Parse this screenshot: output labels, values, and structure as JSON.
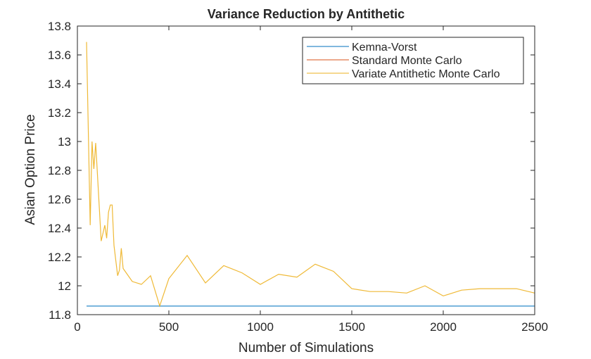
{
  "chart_data": {
    "type": "line",
    "title": "Variance Reduction by Antithetic",
    "xlabel": "Number of Simulations",
    "ylabel": "Asian Option Price",
    "xlim": [
      0,
      2500
    ],
    "ylim": [
      11.8,
      13.8
    ],
    "xticks": [
      0,
      500,
      1000,
      1500,
      2000,
      2500
    ],
    "yticks": [
      11.8,
      12,
      12.2,
      12.4,
      12.6,
      12.8,
      13,
      13.2,
      13.4,
      13.6,
      13.8
    ],
    "grid": false,
    "legend_placement": "top-right",
    "series": [
      {
        "name": "Kemna-Vorst",
        "color": "#0072BD",
        "x": [
          50,
          2500
        ],
        "y": [
          11.86,
          11.86
        ]
      },
      {
        "name": "Standard Monte Carlo",
        "color": "#D95319",
        "x": [],
        "y": []
      },
      {
        "name": "Variate Antithetic Monte Carlo",
        "color": "#EDB120",
        "x": [
          50,
          70,
          80,
          90,
          100,
          130,
          150,
          160,
          170,
          180,
          190,
          200,
          220,
          230,
          240,
          250,
          300,
          350,
          400,
          450,
          500,
          600,
          700,
          800,
          900,
          1000,
          1100,
          1200,
          1300,
          1400,
          1500,
          1600,
          1700,
          1800,
          1900,
          2000,
          2100,
          2200,
          2300,
          2400,
          2500
        ],
        "y": [
          13.69,
          12.42,
          13.0,
          12.81,
          12.99,
          12.31,
          12.42,
          12.33,
          12.51,
          12.56,
          12.56,
          12.28,
          12.07,
          12.11,
          12.26,
          12.12,
          12.03,
          12.01,
          12.07,
          11.86,
          12.05,
          12.21,
          12.02,
          12.14,
          12.09,
          12.01,
          12.08,
          12.06,
          12.15,
          12.1,
          11.98,
          11.96,
          11.96,
          11.95,
          12.0,
          11.93,
          11.97,
          11.98,
          11.98,
          11.98,
          11.95
        ]
      }
    ]
  }
}
